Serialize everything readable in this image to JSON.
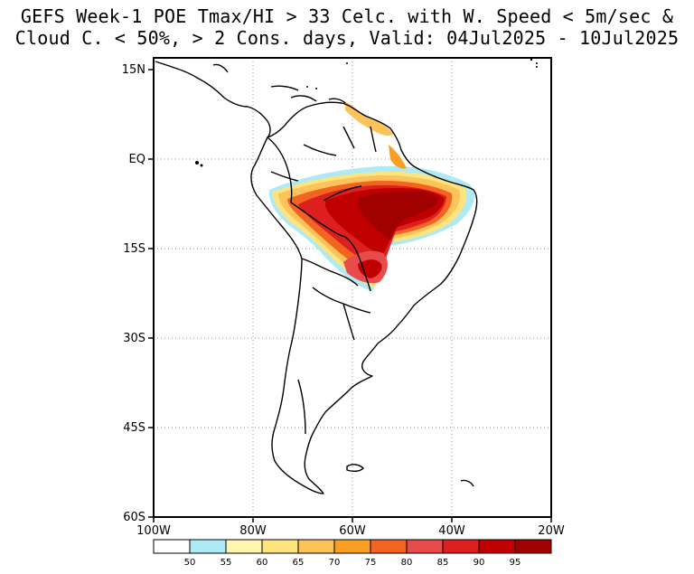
{
  "title": {
    "line1": "GEFS Week-1 POE Tmax/HI > 33 Celc. with W. Speed < 5m/sec &",
    "line2": "Cloud C. < 50%, > 2 Cons. days, Valid: 04Jul2025 - 10Jul2025"
  },
  "map": {
    "lat_labels": [
      "15N",
      "EQ",
      "15S",
      "30S",
      "45S",
      "60S"
    ],
    "lon_labels": [
      "100W",
      "80W",
      "60W",
      "40W",
      "20W"
    ]
  },
  "legend": {
    "labels": [
      "50",
      "55",
      "60",
      "65",
      "70",
      "75",
      "80",
      "85",
      "90",
      "95"
    ],
    "colors": [
      "#ffffff",
      "#aeeaf5",
      "#fdf5b0",
      "#fde47f",
      "#fcc35a",
      "#f9a024",
      "#f26420",
      "#e84b4b",
      "#de1f1f",
      "#c00000",
      "#a00000"
    ]
  }
}
